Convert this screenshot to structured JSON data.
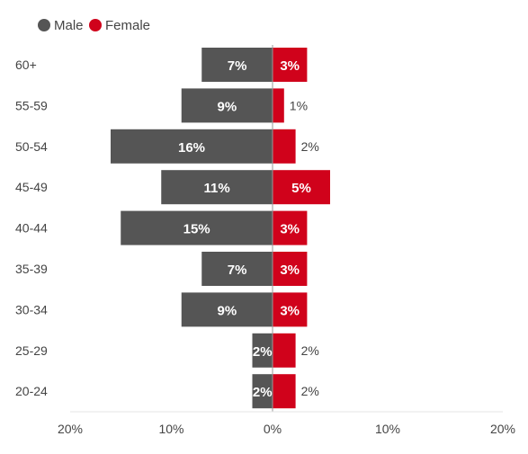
{
  "legend": {
    "male_label": "Male",
    "female_label": "Female"
  },
  "colors": {
    "male": "#555555",
    "female": "#d0021b",
    "axis": "#999999",
    "grid": "#e6e6e6"
  },
  "chart_data": {
    "type": "bar",
    "orientation": "horizontal",
    "stacking": "diverging population pyramid",
    "categories": [
      "60+",
      "55-59",
      "50-54",
      "45-49",
      "40-44",
      "35-39",
      "30-34",
      "25-29",
      "20-24"
    ],
    "series": [
      {
        "name": "Male",
        "values": [
          7,
          9,
          16,
          11,
          15,
          7,
          9,
          2,
          2
        ],
        "labels": [
          "7%",
          "9%",
          "16%",
          "11%",
          "15%",
          "7%",
          "9%",
          "2%",
          "2%"
        ]
      },
      {
        "name": "Female",
        "values": [
          3,
          1,
          2,
          5,
          3,
          3,
          3,
          2,
          2
        ],
        "labels": [
          "3%",
          "1%",
          "2%",
          "5%",
          "3%",
          "3%",
          "3%",
          "2%",
          "2%"
        ]
      }
    ],
    "x_ticks": [
      "20%",
      "10%",
      "0%",
      "10%",
      "20%"
    ],
    "xlim": [
      -20,
      20
    ],
    "grid": false,
    "legend_position": "top-left"
  }
}
